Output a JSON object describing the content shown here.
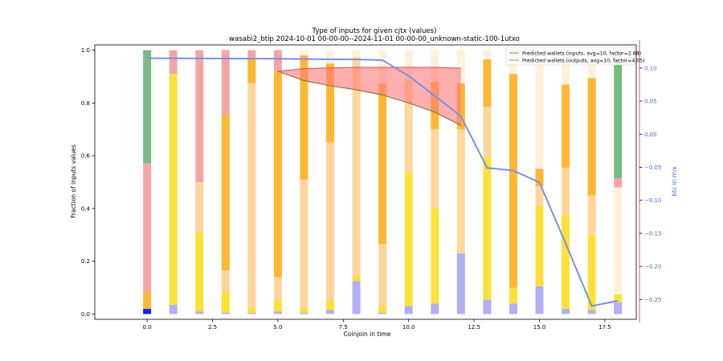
{
  "chart_data": {
    "type": "bar",
    "title_line1": "Type of inputs for given cjtx (values)",
    "title_line2": "wasabi2_btip 2024-10-01 00-00-00--2024-11-01 00-00-00_unknown-static-100-1utxo",
    "xlabel": "Coinjoin in time",
    "ylabel": "Fraction of inputs values",
    "y2label": "btc in mix",
    "xlim": [
      -2,
      18.7
    ],
    "ylim": [
      -0.02,
      1.02
    ],
    "y2lim": [
      -0.28,
      0.135
    ],
    "xticks": [
      "0.0",
      "2.5",
      "5.0",
      "7.5",
      "10.0",
      "12.5",
      "15.0",
      "17.5"
    ],
    "xtick_values": [
      0,
      2.5,
      5,
      7.5,
      10,
      12.5,
      15,
      17.5
    ],
    "yticks": [
      "0.0",
      "0.2",
      "0.4",
      "0.6",
      "0.8",
      "1.0"
    ],
    "ytick_values": [
      0,
      0.2,
      0.4,
      0.6,
      0.8,
      1.0
    ],
    "y2ticks": [
      "−0.25",
      "−0.20",
      "−0.15",
      "−0.10",
      "−0.05",
      "0.00",
      "0.05",
      "0.10"
    ],
    "y2tick_values": [
      -0.25,
      -0.2,
      -0.15,
      -0.1,
      -0.05,
      0,
      0.05,
      0.1
    ],
    "legend": [
      {
        "label": "Predicted wallets (inputs, avg=10, factor=2.68)",
        "color": "#e8726e"
      },
      {
        "label": "Predicted wallets (outputs, avg=10, factor=4.05)",
        "color": "#7fc17f"
      }
    ],
    "segment_colors": {
      "blue": "#1f1fdc",
      "lavender": "#b0b0f5",
      "yellow": "#fde03a",
      "orange": "#feb733",
      "lightorange": "#fed69a",
      "cream": "#fff1dc",
      "pink": "#f3a5a5",
      "green": "#7abb7f"
    },
    "bars": [
      {
        "x": 0,
        "segments": [
          [
            "blue",
            0.02
          ],
          [
            "lavender",
            0.0
          ],
          [
            "yellow",
            0.0
          ],
          [
            "orange",
            0.065
          ],
          [
            "lightorange",
            0.0
          ],
          [
            "cream",
            0.0
          ],
          [
            "pink",
            0.487
          ],
          [
            "green",
            0.428
          ]
        ]
      },
      {
        "x": 1,
        "segments": [
          [
            "blue",
            0
          ],
          [
            "lavender",
            0.035
          ],
          [
            "yellow",
            0.875
          ],
          [
            "orange",
            0
          ],
          [
            "lightorange",
            0
          ],
          [
            "cream",
            0.0
          ],
          [
            "pink",
            0.09
          ],
          [
            "green",
            0
          ]
        ]
      },
      {
        "x": 2,
        "segments": [
          [
            "blue",
            0
          ],
          [
            "lavender",
            0.01
          ],
          [
            "yellow",
            0.3
          ],
          [
            "orange",
            0
          ],
          [
            "lightorange",
            0.19
          ],
          [
            "cream",
            0
          ],
          [
            "pink",
            0.5
          ],
          [
            "green",
            0
          ]
        ]
      },
      {
        "x": 3,
        "segments": [
          [
            "blue",
            0
          ],
          [
            "lavender",
            0.005
          ],
          [
            "yellow",
            0.08
          ],
          [
            "orange",
            0
          ],
          [
            "lightorange",
            0.08
          ],
          [
            "cream",
            0
          ],
          [
            "orange",
            0.59
          ],
          [
            "pink",
            0.245
          ]
        ]
      },
      {
        "x": 4,
        "segments": [
          [
            "blue",
            0
          ],
          [
            "lavender",
            0.005
          ],
          [
            "yellow",
            0.02
          ],
          [
            "orange",
            0
          ],
          [
            "lightorange",
            0.85
          ],
          [
            "orange",
            0.095
          ],
          [
            "pink",
            0.03
          ]
        ]
      },
      {
        "x": 5,
        "segments": [
          [
            "blue",
            0
          ],
          [
            "lavender",
            0.01
          ],
          [
            "yellow",
            0.04
          ],
          [
            "lightorange",
            0.09
          ],
          [
            "orange",
            0.78
          ],
          [
            "pink",
            0.08
          ]
        ]
      },
      {
        "x": 6,
        "segments": [
          [
            "blue",
            0
          ],
          [
            "lavender",
            0.005
          ],
          [
            "yellow",
            0.02
          ],
          [
            "lightorange",
            0.485
          ],
          [
            "orange",
            0.47
          ],
          [
            "cream",
            0.02
          ]
        ]
      },
      {
        "x": 7,
        "segments": [
          [
            "blue",
            0
          ],
          [
            "lavender",
            0.015
          ],
          [
            "yellow",
            0.035
          ],
          [
            "lightorange",
            0.6
          ],
          [
            "orange",
            0.3
          ],
          [
            "cream",
            0.05
          ]
        ]
      },
      {
        "x": 8,
        "segments": [
          [
            "blue",
            0
          ],
          [
            "lavender",
            0.125
          ],
          [
            "yellow",
            0.02
          ],
          [
            "lightorange",
            0.83
          ],
          [
            "orange",
            0.0
          ],
          [
            "cream",
            0.025
          ]
        ]
      },
      {
        "x": 9,
        "segments": [
          [
            "blue",
            0
          ],
          [
            "lavender",
            0.005
          ],
          [
            "yellow",
            0.025
          ],
          [
            "lightorange",
            0.235
          ],
          [
            "orange",
            0.61
          ],
          [
            "cream",
            0.125
          ]
        ]
      },
      {
        "x": 10,
        "segments": [
          [
            "blue",
            0
          ],
          [
            "lavender",
            0.03
          ],
          [
            "yellow",
            0.505
          ],
          [
            "lightorange",
            0.35
          ],
          [
            "orange",
            0.0
          ],
          [
            "cream",
            0.115
          ]
        ]
      },
      {
        "x": 11,
        "segments": [
          [
            "blue",
            0
          ],
          [
            "lavender",
            0.04
          ],
          [
            "yellow",
            0.36
          ],
          [
            "lightorange",
            0.3
          ],
          [
            "orange",
            0.18
          ],
          [
            "cream",
            0.12
          ]
        ]
      },
      {
        "x": 12,
        "segments": [
          [
            "blue",
            0
          ],
          [
            "lavender",
            0.23
          ],
          [
            "yellow",
            0.0
          ],
          [
            "lightorange",
            0.47
          ],
          [
            "orange",
            0.175
          ],
          [
            "cream",
            0.125
          ]
        ]
      },
      {
        "x": 13,
        "segments": [
          [
            "blue",
            0
          ],
          [
            "lavender",
            0.055
          ],
          [
            "yellow",
            0.54
          ],
          [
            "lightorange",
            0.19
          ],
          [
            "orange",
            0.18
          ],
          [
            "cream",
            0.035
          ]
        ]
      },
      {
        "x": 14,
        "segments": [
          [
            "blue",
            0
          ],
          [
            "lavender",
            0.04
          ],
          [
            "yellow",
            0.06
          ],
          [
            "lightorange",
            0.0
          ],
          [
            "orange",
            0.81
          ],
          [
            "cream",
            0.09
          ]
        ]
      },
      {
        "x": 15,
        "segments": [
          [
            "blue",
            0
          ],
          [
            "lavender",
            0.105
          ],
          [
            "yellow",
            0.305
          ],
          [
            "lightorange",
            0.075
          ],
          [
            "orange",
            0.065
          ],
          [
            "cream",
            0.45
          ]
        ]
      },
      {
        "x": 16,
        "segments": [
          [
            "blue",
            0
          ],
          [
            "lavender",
            0.02
          ],
          [
            "yellow",
            0.355
          ],
          [
            "lightorange",
            0.18
          ],
          [
            "orange",
            0.315
          ],
          [
            "cream",
            0.13
          ]
        ]
      },
      {
        "x": 17,
        "segments": [
          [
            "blue",
            0
          ],
          [
            "lavender",
            0.015
          ],
          [
            "yellow",
            0.285
          ],
          [
            "lightorange",
            0.15
          ],
          [
            "orange",
            0.445
          ],
          [
            "cream",
            0.105
          ]
        ]
      },
      {
        "x": 18,
        "segments": [
          [
            "blue",
            0
          ],
          [
            "lavender",
            0.045
          ],
          [
            "yellow",
            0.03
          ],
          [
            "lightorange",
            0.0
          ],
          [
            "cream",
            0.405
          ],
          [
            "pink",
            0.035
          ],
          [
            "green",
            0.485
          ]
        ]
      }
    ],
    "btc_in_mix": {
      "name": "btc in mix",
      "color": "#7b8fe0",
      "x": [
        0,
        5,
        8,
        9,
        10,
        11,
        12,
        13,
        14,
        15,
        16,
        17,
        18
      ],
      "y": [
        0.115,
        0.114,
        0.113,
        0.112,
        0.088,
        0.058,
        0.027,
        -0.051,
        -0.055,
        -0.073,
        -0.165,
        -0.26,
        -0.252
      ]
    },
    "inputs_band": {
      "color": "#ff7a7a",
      "edge": "#d94a4a",
      "x": [
        5,
        6,
        7,
        8,
        9,
        10,
        11,
        12
      ],
      "upper": [
        0.92,
        0.93,
        0.933,
        0.935,
        0.935,
        0.935,
        0.935,
        0.932
      ],
      "lower": [
        0.92,
        0.885,
        0.865,
        0.85,
        0.83,
        0.8,
        0.765,
        0.715
      ]
    },
    "outputs_line": {
      "color": "#8a7a4a",
      "x": [
        5,
        6,
        7,
        8,
        9,
        10,
        11,
        12
      ],
      "y": [
        0.92,
        0.885,
        0.865,
        0.85,
        0.83,
        0.8,
        0.765,
        0.715
      ]
    }
  }
}
